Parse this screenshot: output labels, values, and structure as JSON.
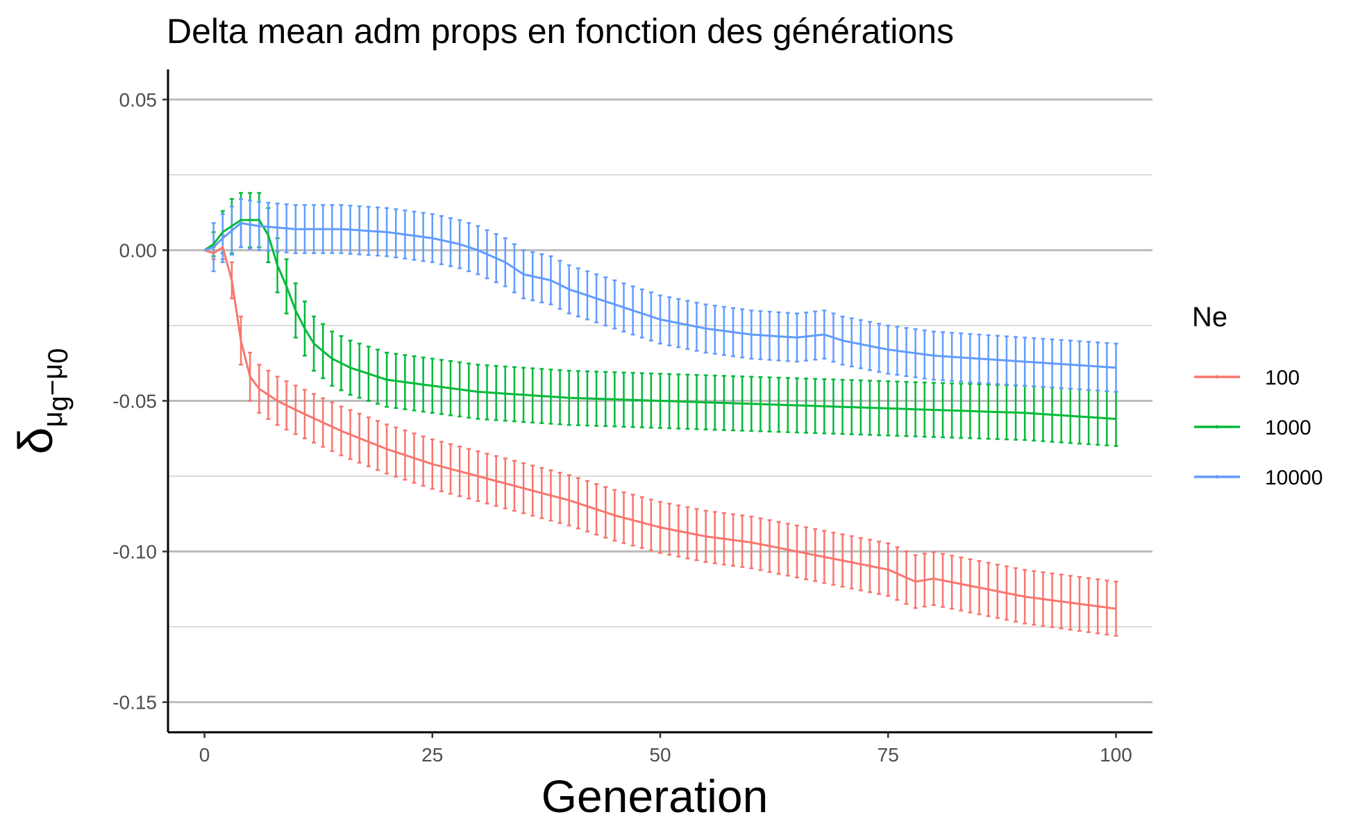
{
  "chart_data": {
    "type": "line",
    "title": "Delta mean adm props en fonction des générations",
    "xlabel": "Generation",
    "ylabel": {
      "symbol": "δ",
      "subscript_a": "μ",
      "subscript_a_sub": "g",
      "operator": "−",
      "subscript_b": "μ",
      "subscript_b_sub": "0"
    },
    "xlim": [
      -4,
      104
    ],
    "ylim": [
      -0.16,
      0.06
    ],
    "x_ticks": [
      0,
      25,
      50,
      75,
      100
    ],
    "x_tick_labels": [
      "0",
      "25",
      "50",
      "75",
      "100"
    ],
    "y_ticks": [
      0.05,
      0.0,
      -0.05,
      -0.1,
      -0.15
    ],
    "y_tick_labels": [
      "0.05",
      "0.00",
      "-0.05",
      "-0.10",
      "-0.15"
    ],
    "y_minor_ticks": [
      0.025,
      -0.025,
      -0.075,
      -0.125
    ],
    "grid": true,
    "legend": {
      "title": "Ne",
      "position": "right",
      "entries": [
        "100",
        "1000",
        "10000"
      ]
    },
    "generations": {
      "start": 0,
      "end": 100,
      "step": 1
    },
    "series": [
      {
        "name": "100",
        "color": "#F8766D",
        "anchors": [
          [
            0,
            0
          ],
          [
            1,
            -0.001
          ],
          [
            2,
            0.001
          ],
          [
            3,
            -0.01
          ],
          [
            4,
            -0.03
          ],
          [
            5,
            -0.042
          ],
          [
            6,
            -0.046
          ],
          [
            8,
            -0.05
          ],
          [
            10,
            -0.053
          ],
          [
            15,
            -0.06
          ],
          [
            20,
            -0.066
          ],
          [
            25,
            -0.071
          ],
          [
            30,
            -0.075
          ],
          [
            35,
            -0.079
          ],
          [
            40,
            -0.083
          ],
          [
            45,
            -0.088
          ],
          [
            50,
            -0.092
          ],
          [
            55,
            -0.095
          ],
          [
            60,
            -0.097
          ],
          [
            65,
            -0.1
          ],
          [
            70,
            -0.103
          ],
          [
            75,
            -0.106
          ],
          [
            78,
            -0.11
          ],
          [
            80,
            -0.109
          ],
          [
            85,
            -0.112
          ],
          [
            90,
            -0.115
          ],
          [
            95,
            -0.117
          ],
          [
            100,
            -0.119
          ]
        ],
        "error_anchors": [
          [
            0,
            0
          ],
          [
            1,
            0.002
          ],
          [
            2,
            0.004
          ],
          [
            3,
            0.006
          ],
          [
            4,
            0.008
          ],
          [
            5,
            0.008
          ],
          [
            100,
            0.009
          ]
        ]
      },
      {
        "name": "1000",
        "color": "#00BA38",
        "anchors": [
          [
            0,
            0
          ],
          [
            1,
            0.002
          ],
          [
            2,
            0.006
          ],
          [
            3,
            0.008
          ],
          [
            4,
            0.01
          ],
          [
            5,
            0.01
          ],
          [
            6,
            0.01
          ],
          [
            7,
            0.005
          ],
          [
            8,
            -0.005
          ],
          [
            9,
            -0.012
          ],
          [
            10,
            -0.02
          ],
          [
            11,
            -0.026
          ],
          [
            12,
            -0.031
          ],
          [
            14,
            -0.036
          ],
          [
            16,
            -0.039
          ],
          [
            18,
            -0.041
          ],
          [
            20,
            -0.043
          ],
          [
            25,
            -0.045
          ],
          [
            30,
            -0.047
          ],
          [
            35,
            -0.048
          ],
          [
            40,
            -0.049
          ],
          [
            45,
            -0.0495
          ],
          [
            50,
            -0.05
          ],
          [
            60,
            -0.051
          ],
          [
            70,
            -0.052
          ],
          [
            80,
            -0.053
          ],
          [
            90,
            -0.054
          ],
          [
            100,
            -0.056
          ]
        ],
        "error_anchors": [
          [
            0,
            0
          ],
          [
            1,
            0.004
          ],
          [
            2,
            0.007
          ],
          [
            3,
            0.009
          ],
          [
            4,
            0.009
          ],
          [
            100,
            0.009
          ]
        ]
      },
      {
        "name": "10000",
        "color": "#619CFF",
        "anchors": [
          [
            0,
            0
          ],
          [
            1,
            0.001
          ],
          [
            2,
            0.004
          ],
          [
            4,
            0.009
          ],
          [
            6,
            0.008
          ],
          [
            10,
            0.007
          ],
          [
            15,
            0.007
          ],
          [
            20,
            0.006
          ],
          [
            25,
            0.004
          ],
          [
            28,
            0.002
          ],
          [
            30,
            0.0
          ],
          [
            33,
            -0.004
          ],
          [
            35,
            -0.008
          ],
          [
            38,
            -0.01
          ],
          [
            40,
            -0.013
          ],
          [
            45,
            -0.018
          ],
          [
            50,
            -0.023
          ],
          [
            55,
            -0.026
          ],
          [
            60,
            -0.028
          ],
          [
            65,
            -0.029
          ],
          [
            68,
            -0.028
          ],
          [
            70,
            -0.03
          ],
          [
            75,
            -0.033
          ],
          [
            80,
            -0.035
          ],
          [
            85,
            -0.036
          ],
          [
            90,
            -0.037
          ],
          [
            95,
            -0.038
          ],
          [
            100,
            -0.039
          ]
        ],
        "error_anchors": [
          [
            0,
            0
          ],
          [
            1,
            0.008
          ],
          [
            2,
            0.008
          ],
          [
            100,
            0.008
          ]
        ]
      }
    ]
  }
}
